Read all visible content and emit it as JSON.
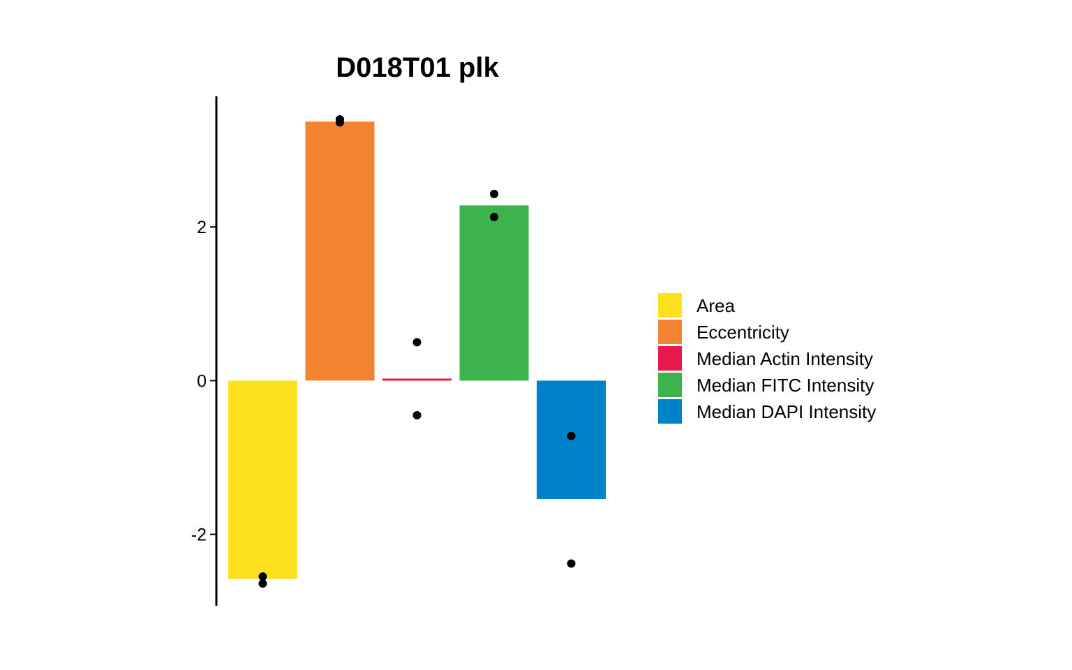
{
  "chart_data": {
    "type": "bar",
    "title": "D018T01 plk",
    "xlabel": "",
    "ylabel": "",
    "ylim": [
      -2.93,
      3.7
    ],
    "yticks": [
      -2,
      0,
      2
    ],
    "grid": false,
    "legend_position": "right",
    "categories": [
      "Area",
      "Eccentricity",
      "Median Actin Intensity",
      "Median FITC Intensity",
      "Median DAPI Intensity"
    ],
    "values": [
      -2.58,
      3.37,
      0.02,
      2.28,
      -1.54
    ],
    "colors": [
      "#FDE11C",
      "#F48331",
      "#E8194B",
      "#3CB44B",
      "#0082C8"
    ],
    "points": [
      [
        -2.55,
        -2.64
      ],
      [
        3.4,
        3.36
      ],
      [
        0.5,
        -0.45
      ],
      [
        2.43,
        2.13
      ],
      [
        -0.72,
        -2.38
      ]
    ],
    "point_color": "#000000"
  }
}
